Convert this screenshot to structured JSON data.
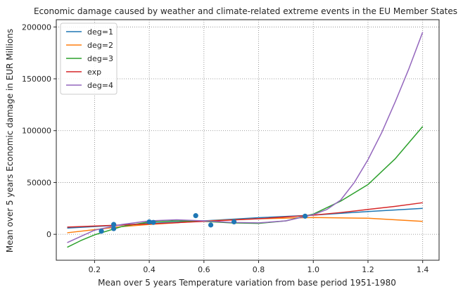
{
  "chart_data": {
    "type": "scatter",
    "title": "Economic damage caused by weather and climate-related extreme events in the EU Member States",
    "xlabel": "Mean over 5 years Temperature variation from base period 1951-1980",
    "ylabel": "Mean over 5 years Economic damage in EUR Millions",
    "xlim": [
      0.06,
      1.46
    ],
    "ylim": [
      -25000,
      207000
    ],
    "xticks": [
      0.2,
      0.4,
      0.6,
      0.8,
      1.0,
      1.2,
      1.4
    ],
    "xtick_labels": [
      "0.2",
      "0.4",
      "0.6",
      "0.8",
      "1.0",
      "1.2",
      "1.4"
    ],
    "yticks": [
      0,
      50000,
      100000,
      150000,
      200000
    ],
    "ytick_labels": [
      "0",
      "50000",
      "100000",
      "150000",
      "200000"
    ],
    "grid": true,
    "legend_position": "top-left",
    "points": {
      "color": "#1f77b4",
      "x": [
        0.225,
        0.27,
        0.27,
        0.4,
        0.415,
        0.57,
        0.625,
        0.71,
        0.97
      ],
      "y": [
        3000,
        9500,
        5500,
        12000,
        11500,
        18000,
        9000,
        12000,
        17500
      ]
    },
    "series": [
      {
        "name": "deg=1",
        "color": "#1f77b4",
        "x": [
          0.1,
          0.2,
          0.4,
          0.6,
          0.8,
          1.0,
          1.2,
          1.4
        ],
        "y": [
          6000,
          7500,
          10500,
          13000,
          16000,
          18500,
          22000,
          25000
        ]
      },
      {
        "name": "deg=2",
        "color": "#ff7f0e",
        "x": [
          0.1,
          0.2,
          0.3,
          0.4,
          0.6,
          0.8,
          1.0,
          1.2,
          1.4
        ],
        "y": [
          1500,
          4500,
          7500,
          9500,
          12800,
          15000,
          16200,
          15500,
          12500
        ]
      },
      {
        "name": "deg=3",
        "color": "#2ca02c",
        "x": [
          0.1,
          0.15,
          0.2,
          0.3,
          0.4,
          0.5,
          0.6,
          0.7,
          0.8,
          0.9,
          1.0,
          1.1,
          1.2,
          1.3,
          1.4
        ],
        "y": [
          -12500,
          -6000,
          -500,
          7500,
          12000,
          13000,
          12500,
          11000,
          10500,
          13000,
          19500,
          32000,
          48000,
          73000,
          104000
        ]
      },
      {
        "name": "exp",
        "color": "#d62728",
        "x": [
          0.1,
          0.2,
          0.4,
          0.6,
          0.8,
          1.0,
          1.1,
          1.2,
          1.3,
          1.4
        ],
        "y": [
          7000,
          8000,
          10000,
          12500,
          15000,
          18500,
          21000,
          24000,
          27000,
          30500
        ]
      },
      {
        "name": "deg=4",
        "color": "#9467bd",
        "x": [
          0.1,
          0.15,
          0.2,
          0.3,
          0.4,
          0.5,
          0.6,
          0.7,
          0.8,
          0.9,
          1.0,
          1.05,
          1.1,
          1.15,
          1.2,
          1.25,
          1.3,
          1.35,
          1.4
        ],
        "y": [
          -8000,
          -2000,
          4000,
          9500,
          13000,
          14000,
          13000,
          11500,
          11000,
          13000,
          19000,
          24000,
          33000,
          50000,
          72000,
          98000,
          128000,
          160000,
          195000
        ]
      }
    ]
  }
}
